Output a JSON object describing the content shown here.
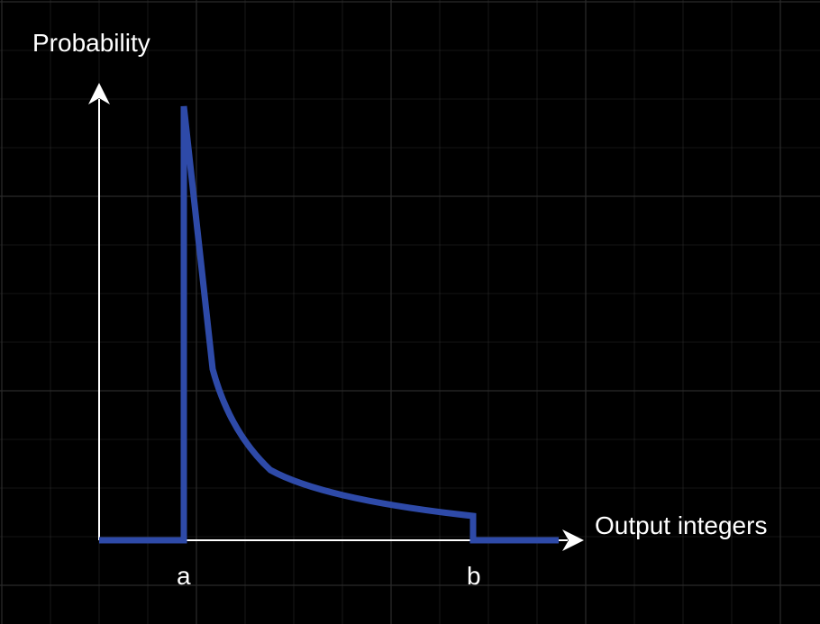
{
  "diagram": {
    "y_axis_label": "Probability",
    "x_axis_label": "Output integers",
    "markers": [
      {
        "id": "a",
        "label": "a"
      },
      {
        "id": "b",
        "label": "b"
      }
    ]
  },
  "colors": {
    "background": "#000000",
    "grid": "#2b2b2b",
    "axis": "#ffffff",
    "curve": "#2e4aa8",
    "text": "#ffffff"
  }
}
